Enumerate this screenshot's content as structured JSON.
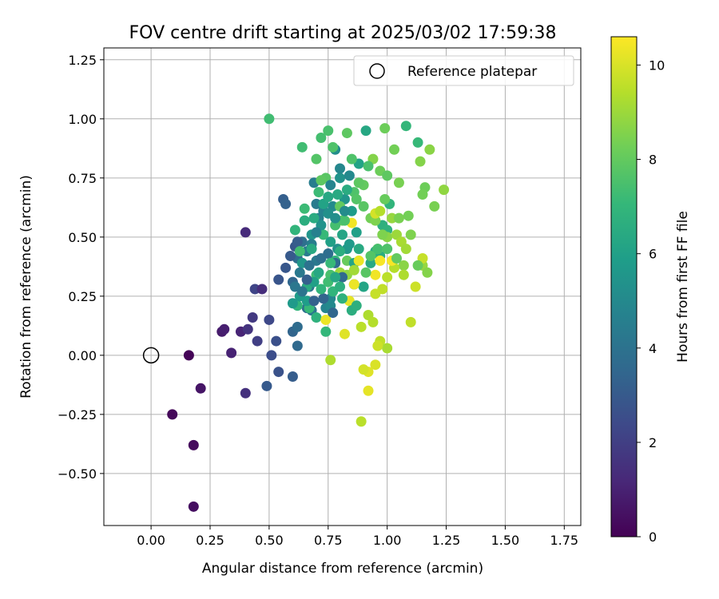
{
  "chart_data": {
    "type": "scatter",
    "title": "FOV centre drift starting at 2025/03/02 17:59:38",
    "xlabel": "Angular distance from reference (arcmin)",
    "ylabel": "Rotation from reference (arcmin)",
    "xlim": [
      -0.2,
      1.82
    ],
    "ylim": [
      -0.72,
      1.3
    ],
    "xticks": [
      "0.00",
      "0.25",
      "0.50",
      "0.75",
      "1.00",
      "1.25",
      "1.50",
      "1.75"
    ],
    "yticks": [
      "−0.50",
      "−0.25",
      "0.00",
      "0.25",
      "0.50",
      "0.75",
      "1.00",
      "1.25"
    ],
    "grid": true,
    "legend": {
      "placement": "top-right",
      "entries": [
        "Reference platepar"
      ]
    },
    "reference_point": {
      "x": 0.0,
      "y": 0.0
    },
    "colorbar": {
      "label": "Hours from first FF file",
      "range": [
        0,
        10.6
      ],
      "ticks": [
        "0",
        "2",
        "4",
        "6",
        "8",
        "10"
      ],
      "colormap": "viridis"
    },
    "points": [
      [
        0.16,
        0.0,
        0.1
      ],
      [
        0.09,
        -0.25,
        0.2
      ],
      [
        0.18,
        -0.38,
        0.3
      ],
      [
        0.18,
        -0.64,
        0.4
      ],
      [
        0.21,
        -0.14,
        0.6
      ],
      [
        0.3,
        0.1,
        0.8
      ],
      [
        0.31,
        0.11,
        0.9
      ],
      [
        0.34,
        0.01,
        1.0
      ],
      [
        0.38,
        0.1,
        1.1
      ],
      [
        0.4,
        0.52,
        1.3
      ],
      [
        0.4,
        -0.16,
        1.5
      ],
      [
        0.41,
        0.11,
        1.6
      ],
      [
        0.43,
        0.16,
        1.8
      ],
      [
        0.45,
        0.06,
        2.0
      ],
      [
        0.44,
        0.28,
        2.2
      ],
      [
        0.47,
        0.28,
        1.4
      ],
      [
        0.5,
        0.15,
        2.3
      ],
      [
        0.51,
        0.0,
        2.5
      ],
      [
        0.53,
        0.06,
        2.6
      ],
      [
        0.54,
        -0.07,
        2.7
      ],
      [
        0.54,
        0.32,
        2.8
      ],
      [
        0.49,
        -0.13,
        3.0
      ],
      [
        0.56,
        0.66,
        3.2
      ],
      [
        0.57,
        0.64,
        3.3
      ],
      [
        0.6,
        0.1,
        3.4
      ],
      [
        0.6,
        -0.09,
        3.1
      ],
      [
        0.62,
        0.04,
        3.6
      ],
      [
        0.62,
        0.12,
        3.7
      ],
      [
        0.6,
        0.31,
        3.5
      ],
      [
        0.61,
        0.46,
        2.9
      ],
      [
        0.62,
        0.41,
        3.8
      ],
      [
        0.64,
        0.48,
        3.9
      ],
      [
        0.66,
        0.2,
        4.0
      ],
      [
        0.67,
        0.29,
        4.1
      ],
      [
        0.68,
        0.19,
        4.2
      ],
      [
        0.7,
        0.4,
        4.3
      ],
      [
        0.7,
        0.64,
        4.4
      ],
      [
        0.69,
        0.73,
        4.5
      ],
      [
        0.71,
        0.58,
        4.6
      ],
      [
        0.73,
        0.61,
        4.7
      ],
      [
        0.74,
        0.2,
        4.8
      ],
      [
        0.76,
        0.24,
        4.9
      ],
      [
        0.76,
        0.21,
        5.0
      ],
      [
        0.77,
        0.63,
        5.1
      ],
      [
        0.78,
        0.87,
        5.2
      ],
      [
        0.79,
        0.45,
        5.3
      ],
      [
        0.8,
        0.75,
        5.4
      ],
      [
        0.82,
        0.66,
        5.5
      ],
      [
        0.83,
        0.45,
        5.6
      ],
      [
        0.84,
        0.47,
        5.7
      ],
      [
        0.85,
        0.61,
        5.8
      ],
      [
        0.86,
        0.3,
        5.9
      ],
      [
        0.87,
        0.52,
        6.0
      ],
      [
        0.88,
        0.81,
        6.1
      ],
      [
        0.9,
        0.29,
        6.2
      ],
      [
        0.91,
        0.95,
        6.3
      ],
      [
        0.93,
        0.39,
        6.4
      ],
      [
        0.95,
        0.44,
        6.5
      ],
      [
        0.97,
        0.42,
        6.6
      ],
      [
        0.98,
        0.55,
        6.7
      ],
      [
        1.0,
        0.53,
        6.8
      ],
      [
        1.01,
        0.64,
        6.9
      ],
      [
        1.08,
        0.97,
        7.0
      ],
      [
        1.13,
        0.9,
        7.1
      ],
      [
        0.65,
        0.62,
        7.2
      ],
      [
        0.64,
        0.88,
        7.3
      ],
      [
        0.72,
        0.92,
        7.4
      ],
      [
        0.75,
        0.95,
        7.5
      ],
      [
        0.77,
        0.88,
        7.6
      ],
      [
        0.7,
        0.83,
        7.7
      ],
      [
        0.74,
        0.75,
        7.8
      ],
      [
        0.72,
        0.74,
        7.9
      ],
      [
        0.8,
        0.63,
        8.0
      ],
      [
        0.81,
        0.57,
        8.0
      ],
      [
        0.83,
        0.4,
        8.1
      ],
      [
        0.85,
        0.83,
        7.6
      ],
      [
        0.83,
        0.94,
        7.9
      ],
      [
        0.5,
        1.0,
        7.3
      ],
      [
        0.99,
        0.96,
        8.2
      ],
      [
        1.03,
        0.87,
        8.3
      ],
      [
        1.05,
        0.73,
        8.4
      ],
      [
        1.1,
        0.51,
        8.5
      ],
      [
        1.14,
        0.82,
        8.6
      ],
      [
        1.16,
        0.71,
        8.2
      ],
      [
        1.18,
        0.87,
        8.7
      ],
      [
        1.2,
        0.63,
        8.4
      ],
      [
        1.24,
        0.7,
        8.8
      ],
      [
        1.15,
        0.38,
        8.9
      ],
      [
        1.17,
        0.35,
        8.6
      ],
      [
        1.07,
        0.38,
        8.7
      ],
      [
        0.78,
        0.4,
        7.0
      ],
      [
        0.76,
        0.34,
        7.5
      ],
      [
        0.7,
        0.34,
        7.2
      ],
      [
        0.67,
        0.2,
        7.1
      ],
      [
        0.75,
        0.31,
        7.3
      ],
      [
        0.7,
        0.16,
        6.8
      ],
      [
        0.74,
        0.1,
        7.0
      ],
      [
        0.62,
        0.21,
        6.9
      ],
      [
        0.66,
        0.29,
        6.5
      ],
      [
        0.8,
        0.44,
        6.6
      ],
      [
        0.88,
        0.45,
        6.4
      ],
      [
        0.86,
        0.39,
        6.2
      ],
      [
        0.9,
        0.72,
        8.0
      ],
      [
        0.93,
        0.58,
        8.3
      ],
      [
        0.95,
        0.57,
        8.5
      ],
      [
        1.0,
        0.5,
        8.7
      ],
      [
        1.02,
        0.58,
        8.9
      ],
      [
        1.04,
        0.51,
        9.0
      ],
      [
        1.06,
        0.48,
        9.2
      ],
      [
        1.08,
        0.45,
        9.1
      ],
      [
        1.07,
        0.34,
        9.3
      ],
      [
        1.03,
        0.37,
        9.4
      ],
      [
        1.0,
        0.33,
        9.5
      ],
      [
        0.98,
        0.28,
        9.6
      ],
      [
        0.95,
        0.26,
        9.7
      ],
      [
        0.92,
        0.17,
        9.3
      ],
      [
        0.89,
        0.12,
        9.5
      ],
      [
        0.94,
        0.14,
        9.4
      ],
      [
        0.97,
        0.06,
        9.6
      ],
      [
        1.0,
        0.03,
        9.2
      ],
      [
        0.96,
        0.04,
        9.8
      ],
      [
        0.95,
        -0.04,
        10.0
      ],
      [
        0.92,
        -0.07,
        10.1
      ],
      [
        0.9,
        -0.06,
        9.9
      ],
      [
        0.92,
        -0.15,
        10.2
      ],
      [
        0.89,
        -0.28,
        9.5
      ],
      [
        0.76,
        -0.02,
        9.3
      ],
      [
        0.82,
        0.09,
        10.1
      ],
      [
        0.84,
        0.23,
        10.2
      ],
      [
        0.86,
        0.3,
        10.3
      ],
      [
        0.88,
        0.4,
        10.3
      ],
      [
        0.95,
        0.34,
        10.4
      ],
      [
        0.97,
        0.4,
        10.5
      ],
      [
        1.02,
        0.4,
        10.5
      ],
      [
        0.85,
        0.56,
        10.4
      ],
      [
        0.74,
        0.15,
        10.3
      ],
      [
        0.95,
        0.6,
        9.9
      ],
      [
        1.1,
        0.14,
        9.6
      ],
      [
        1.12,
        0.29,
        9.8
      ],
      [
        1.15,
        0.41,
        9.7
      ],
      [
        0.97,
        0.61,
        9.4
      ],
      [
        0.8,
        0.35,
        9.0
      ],
      [
        0.83,
        0.34,
        8.8
      ],
      [
        0.86,
        0.36,
        9.1
      ],
      [
        0.96,
        0.45,
        9.0
      ],
      [
        0.98,
        0.51,
        8.5
      ],
      [
        0.94,
        0.83,
        8.6
      ],
      [
        0.97,
        0.78,
        8.2
      ],
      [
        1.05,
        0.58,
        8.4
      ],
      [
        1.09,
        0.59,
        8.3
      ],
      [
        1.13,
        0.38,
        8.1
      ],
      [
        1.15,
        0.68,
        8.3
      ],
      [
        0.88,
        0.73,
        7.9
      ],
      [
        0.86,
        0.69,
        7.6
      ],
      [
        0.9,
        0.63,
        7.8
      ],
      [
        0.78,
        0.55,
        7.4
      ],
      [
        0.82,
        0.57,
        7.5
      ],
      [
        0.73,
        0.51,
        7.1
      ],
      [
        0.77,
        0.27,
        6.9
      ],
      [
        0.81,
        0.24,
        6.8
      ],
      [
        0.85,
        0.19,
        6.6
      ],
      [
        0.87,
        0.21,
        6.7
      ],
      [
        0.71,
        0.35,
        6.3
      ],
      [
        0.69,
        0.31,
        6.0
      ],
      [
        0.66,
        0.23,
        5.9
      ],
      [
        0.63,
        0.25,
        5.8
      ],
      [
        0.6,
        0.22,
        5.7
      ],
      [
        0.64,
        0.39,
        5.6
      ],
      [
        0.68,
        0.51,
        5.5
      ],
      [
        0.72,
        0.55,
        5.4
      ],
      [
        0.75,
        0.6,
        5.3
      ],
      [
        0.78,
        0.58,
        5.2
      ],
      [
        0.82,
        0.61,
        5.1
      ],
      [
        0.84,
        0.76,
        5.0
      ],
      [
        0.8,
        0.79,
        4.9
      ],
      [
        0.76,
        0.72,
        4.8
      ],
      [
        0.73,
        0.64,
        4.7
      ],
      [
        0.7,
        0.52,
        4.6
      ],
      [
        0.68,
        0.47,
        4.5
      ],
      [
        0.66,
        0.44,
        4.4
      ],
      [
        0.63,
        0.35,
        4.3
      ],
      [
        0.61,
        0.29,
        4.2
      ],
      [
        0.64,
        0.27,
        4.1
      ],
      [
        0.67,
        0.38,
        4.0
      ],
      [
        0.72,
        0.41,
        3.9
      ],
      [
        0.75,
        0.43,
        3.8
      ],
      [
        0.78,
        0.39,
        3.7
      ],
      [
        0.81,
        0.33,
        3.6
      ],
      [
        0.77,
        0.18,
        3.5
      ],
      [
        0.73,
        0.24,
        3.4
      ],
      [
        0.69,
        0.23,
        3.3
      ],
      [
        0.66,
        0.32,
        3.2
      ],
      [
        0.62,
        0.48,
        3.1
      ],
      [
        0.59,
        0.42,
        3.0
      ],
      [
        0.57,
        0.37,
        2.9
      ],
      [
        0.73,
        0.64,
        6.1
      ],
      [
        0.75,
        0.67,
        6.3
      ],
      [
        0.79,
        0.68,
        6.4
      ],
      [
        0.83,
        0.7,
        6.5
      ],
      [
        0.81,
        0.51,
        6.2
      ],
      [
        0.76,
        0.48,
        6.0
      ],
      [
        0.78,
        0.33,
        6.3
      ],
      [
        0.8,
        0.29,
        6.7
      ],
      [
        0.72,
        0.28,
        6.9
      ],
      [
        0.76,
        0.39,
        7.1
      ],
      [
        0.91,
        0.35,
        7.8
      ],
      [
        0.93,
        0.42,
        7.7
      ],
      [
        0.96,
        0.45,
        7.4
      ],
      [
        1.0,
        0.45,
        7.6
      ],
      [
        1.04,
        0.41,
        8.0
      ],
      [
        0.99,
        0.66,
        8.1
      ],
      [
        1.0,
        0.76,
        7.9
      ],
      [
        0.92,
        0.8,
        7.5
      ],
      [
        0.87,
        0.66,
        7.7
      ],
      [
        0.71,
        0.69,
        7.2
      ],
      [
        0.69,
        0.58,
        6.5
      ],
      [
        0.65,
        0.57,
        6.6
      ],
      [
        0.61,
        0.53,
        6.9
      ],
      [
        0.63,
        0.44,
        7.3
      ],
      [
        0.68,
        0.45,
        6.4
      ]
    ]
  }
}
